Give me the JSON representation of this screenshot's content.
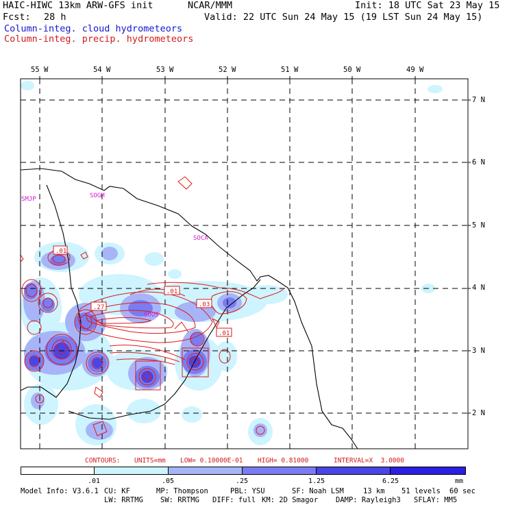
{
  "header": {
    "model": "HAIC-HIWC 13km ARW-GFS init",
    "agency": "NCAR/MMM",
    "init": "Init: 18 UTC Sat 23 May 15",
    "fcst_label": "Fcst:",
    "fcst_value": "28 h",
    "valid": "Valid: 22 UTC Sun 24 May 15 (19 LST Sun 24 May 15)",
    "field_cloud": "Column-integ. cloud hydrometeors",
    "field_precip": "Column-integ. precip. hydrometeors"
  },
  "colors": {
    "cloud_text": "#1414d2",
    "precip_text": "#d01a1a",
    "shade_1": "#cdf4ff",
    "shade_2": "#a8b4f8",
    "shade_3": "#7a7cf0",
    "shade_4": "#4a45e6",
    "shade_5": "#2a1ee0",
    "contour": "#e01818"
  },
  "map": {
    "lon_labels": [
      "55 W",
      "54 W",
      "53 W",
      "52 W",
      "51 W",
      "50 W",
      "49 W"
    ],
    "lat_labels": [
      "7 N",
      "6 N",
      "5 N",
      "4 N",
      "3 N",
      "2 N"
    ],
    "stations": [
      "SMJP",
      "SOGM",
      "SOCA",
      "SOOS"
    ],
    "contour_labels": [
      ".01",
      ".01",
      ".27",
      ".03",
      ".01"
    ]
  },
  "contour_info": {
    "label": "CONTOURS:",
    "units": "UNITS=mm",
    "low": "LOW= 0.10000E-01",
    "high": "HIGH= 0.81000",
    "interval": "INTERVAL=X  3.0000"
  },
  "colorbar": {
    "labels": [
      ".01",
      ".05",
      ".25",
      "1.25",
      "6.25"
    ],
    "units": "mm"
  },
  "footer": {
    "line1": [
      "Model Info: V3.6.1",
      "CU: KF",
      "MP: Thompson",
      "PBL: YSU",
      "SF: Noah LSM",
      "13 km",
      "51 levels",
      "60 sec"
    ],
    "line2": [
      "LW: RRTMG",
      "SW: RRTMG",
      "DIFF: full",
      "KM: 2D Smagor",
      "DAMP: Rayleigh3",
      "SFLAY: MM5"
    ]
  }
}
